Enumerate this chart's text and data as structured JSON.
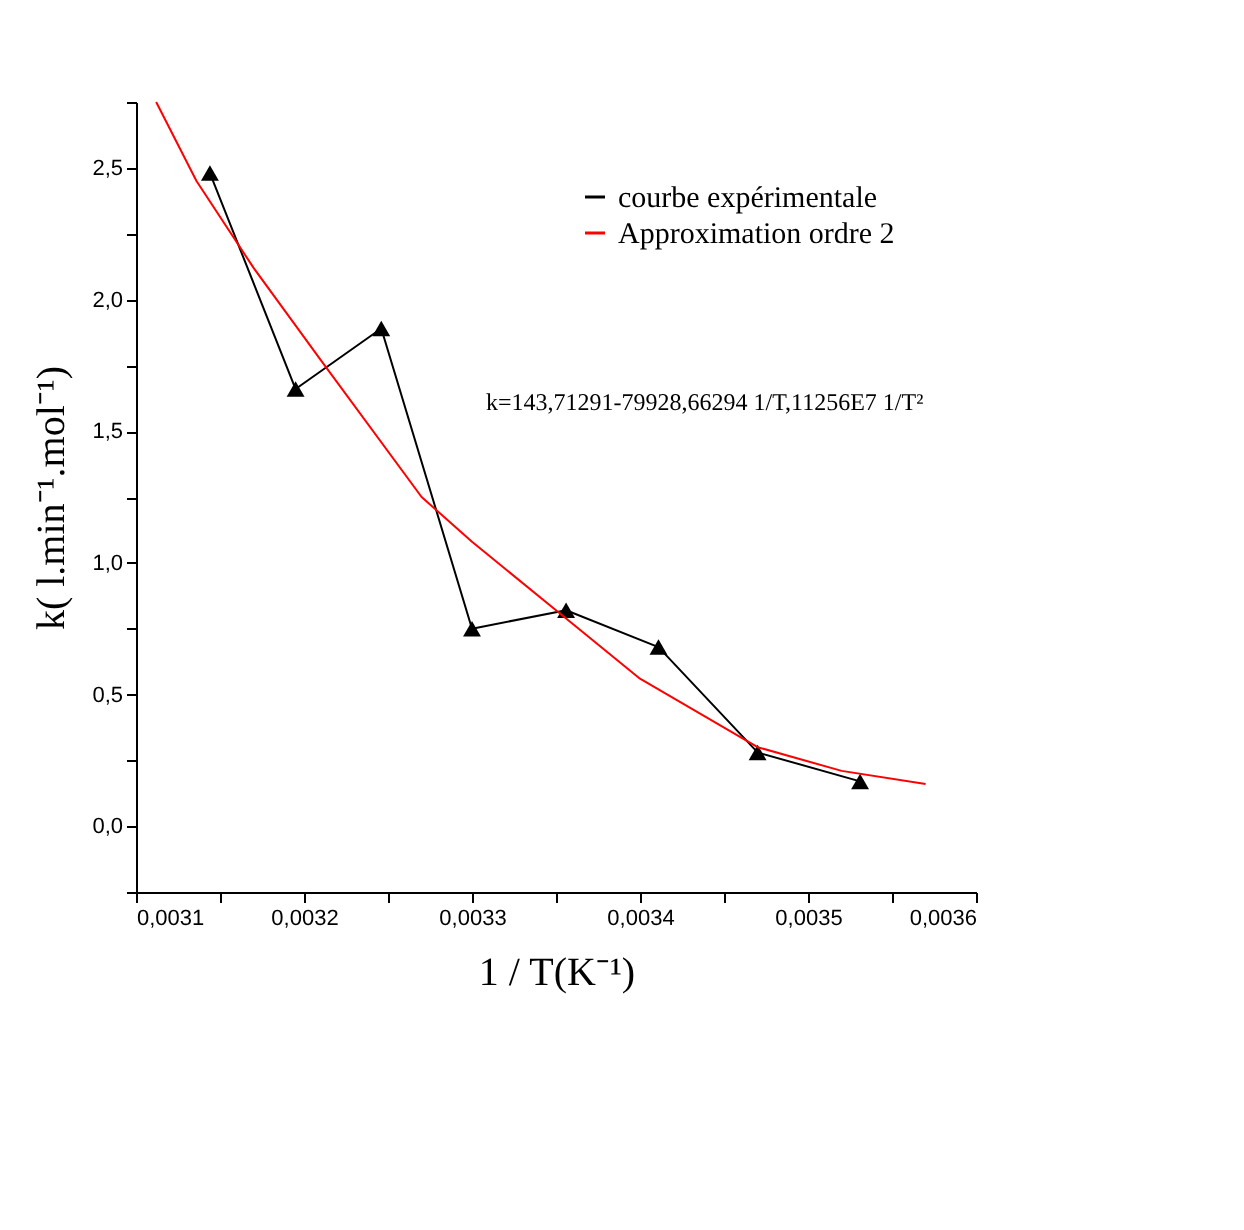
{
  "chart_data": {
    "type": "line",
    "xlabel": "1 / T(K⁻¹)",
    "ylabel": "k( l.min⁻¹.mol⁻¹)",
    "annotations": [
      "k=143,71291-79928,66294 1/T,11256E7 1/T²"
    ],
    "xlim": [
      0.0031,
      0.0036
    ],
    "ylim": [
      -0.25,
      2.75
    ],
    "xticks": [
      {
        "value": 0.0031,
        "label": "0,0031"
      },
      {
        "value": 0.00315,
        "label": null
      },
      {
        "value": 0.0032,
        "label": "0,0032"
      },
      {
        "value": 0.00325,
        "label": null
      },
      {
        "value": 0.0033,
        "label": "0,0033"
      },
      {
        "value": 0.00335,
        "label": null
      },
      {
        "value": 0.0034,
        "label": "0,0034"
      },
      {
        "value": 0.00345,
        "label": null
      },
      {
        "value": 0.0035,
        "label": "0,0035"
      },
      {
        "value": 0.00355,
        "label": null
      },
      {
        "value": 0.0036,
        "label": "0,0036"
      }
    ],
    "yticks": [
      {
        "value": -0.25,
        "label": null
      },
      {
        "value": 0,
        "label": "0,0"
      },
      {
        "value": 0.25,
        "label": null
      },
      {
        "value": 0.5,
        "label": "0,5"
      },
      {
        "value": 0.75,
        "label": null
      },
      {
        "value": 1,
        "label": "1,0"
      },
      {
        "value": 1.25,
        "label": null
      },
      {
        "value": 1.5,
        "label": "1,5"
      },
      {
        "value": 1.75,
        "label": null
      },
      {
        "value": 2,
        "label": "2,0"
      },
      {
        "value": 2.25,
        "label": null
      },
      {
        "value": 2.5,
        "label": "2,5"
      },
      {
        "value": 2.75,
        "label": null
      }
    ],
    "grid": false,
    "legend": "top right",
    "series": [
      {
        "name": "courbe expérimentale",
        "color": "#000000",
        "marker": "triangle",
        "x": [
          0.003144,
          0.003195,
          0.003246,
          0.0033,
          0.003356,
          0.003411,
          0.00347,
          0.003531
        ],
        "values": [
          2.48,
          1.66,
          1.89,
          0.75,
          0.82,
          0.68,
          0.28,
          0.17
        ]
      },
      {
        "name": "Approximation ordre 2",
        "color": "#ff0000",
        "marker": "none",
        "x": [
          0.003112,
          0.003136,
          0.00317,
          0.00321,
          0.00327,
          0.0033,
          0.00335,
          0.0034,
          0.00347,
          0.00352,
          0.00357
        ],
        "values": [
          2.75,
          2.45,
          2.12,
          1.77,
          1.25,
          1.08,
          0.82,
          0.56,
          0.3,
          0.21,
          0.16
        ]
      }
    ]
  }
}
